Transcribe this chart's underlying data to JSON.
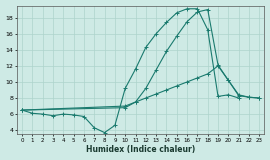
{
  "xlabel": "Humidex (Indice chaleur)",
  "background_color": "#ceeae5",
  "grid_color": "#aed4cc",
  "line_color": "#1a7a6e",
  "xlim": [
    -0.5,
    23.5
  ],
  "ylim": [
    3.5,
    19.5
  ],
  "xticks": [
    0,
    1,
    2,
    3,
    4,
    5,
    6,
    7,
    8,
    9,
    10,
    11,
    12,
    13,
    14,
    15,
    16,
    17,
    18,
    19,
    20,
    21,
    22,
    23
  ],
  "yticks": [
    4,
    6,
    8,
    10,
    12,
    14,
    16,
    18
  ],
  "series": [
    {
      "x": [
        0,
        1,
        2,
        3,
        4,
        5,
        6,
        7,
        8,
        9,
        10,
        11,
        12,
        13,
        14,
        15,
        16,
        17,
        18,
        19,
        20,
        21
      ],
      "y": [
        6.5,
        6.1,
        6.0,
        5.8,
        6.0,
        5.9,
        5.7,
        4.3,
        3.7,
        4.6,
        9.2,
        11.6,
        14.3,
        16.0,
        17.4,
        18.6,
        19.1,
        19.1,
        16.5,
        8.2,
        8.4,
        8.0
      ]
    },
    {
      "x": [
        0,
        10,
        11,
        12,
        13,
        14,
        15,
        16,
        17,
        18,
        19,
        20,
        21,
        22,
        23
      ],
      "y": [
        6.5,
        6.8,
        7.5,
        9.2,
        11.5,
        13.8,
        15.7,
        17.5,
        18.7,
        19.0,
        12.1,
        10.2,
        8.3,
        8.1,
        8.0
      ]
    },
    {
      "x": [
        0,
        10,
        11,
        12,
        13,
        14,
        15,
        16,
        17,
        18,
        19,
        20,
        21,
        22,
        23
      ],
      "y": [
        6.5,
        7.0,
        7.5,
        8.0,
        8.5,
        9.0,
        9.5,
        10.0,
        10.5,
        11.0,
        12.0,
        10.2,
        8.4,
        8.1,
        8.0
      ]
    }
  ]
}
